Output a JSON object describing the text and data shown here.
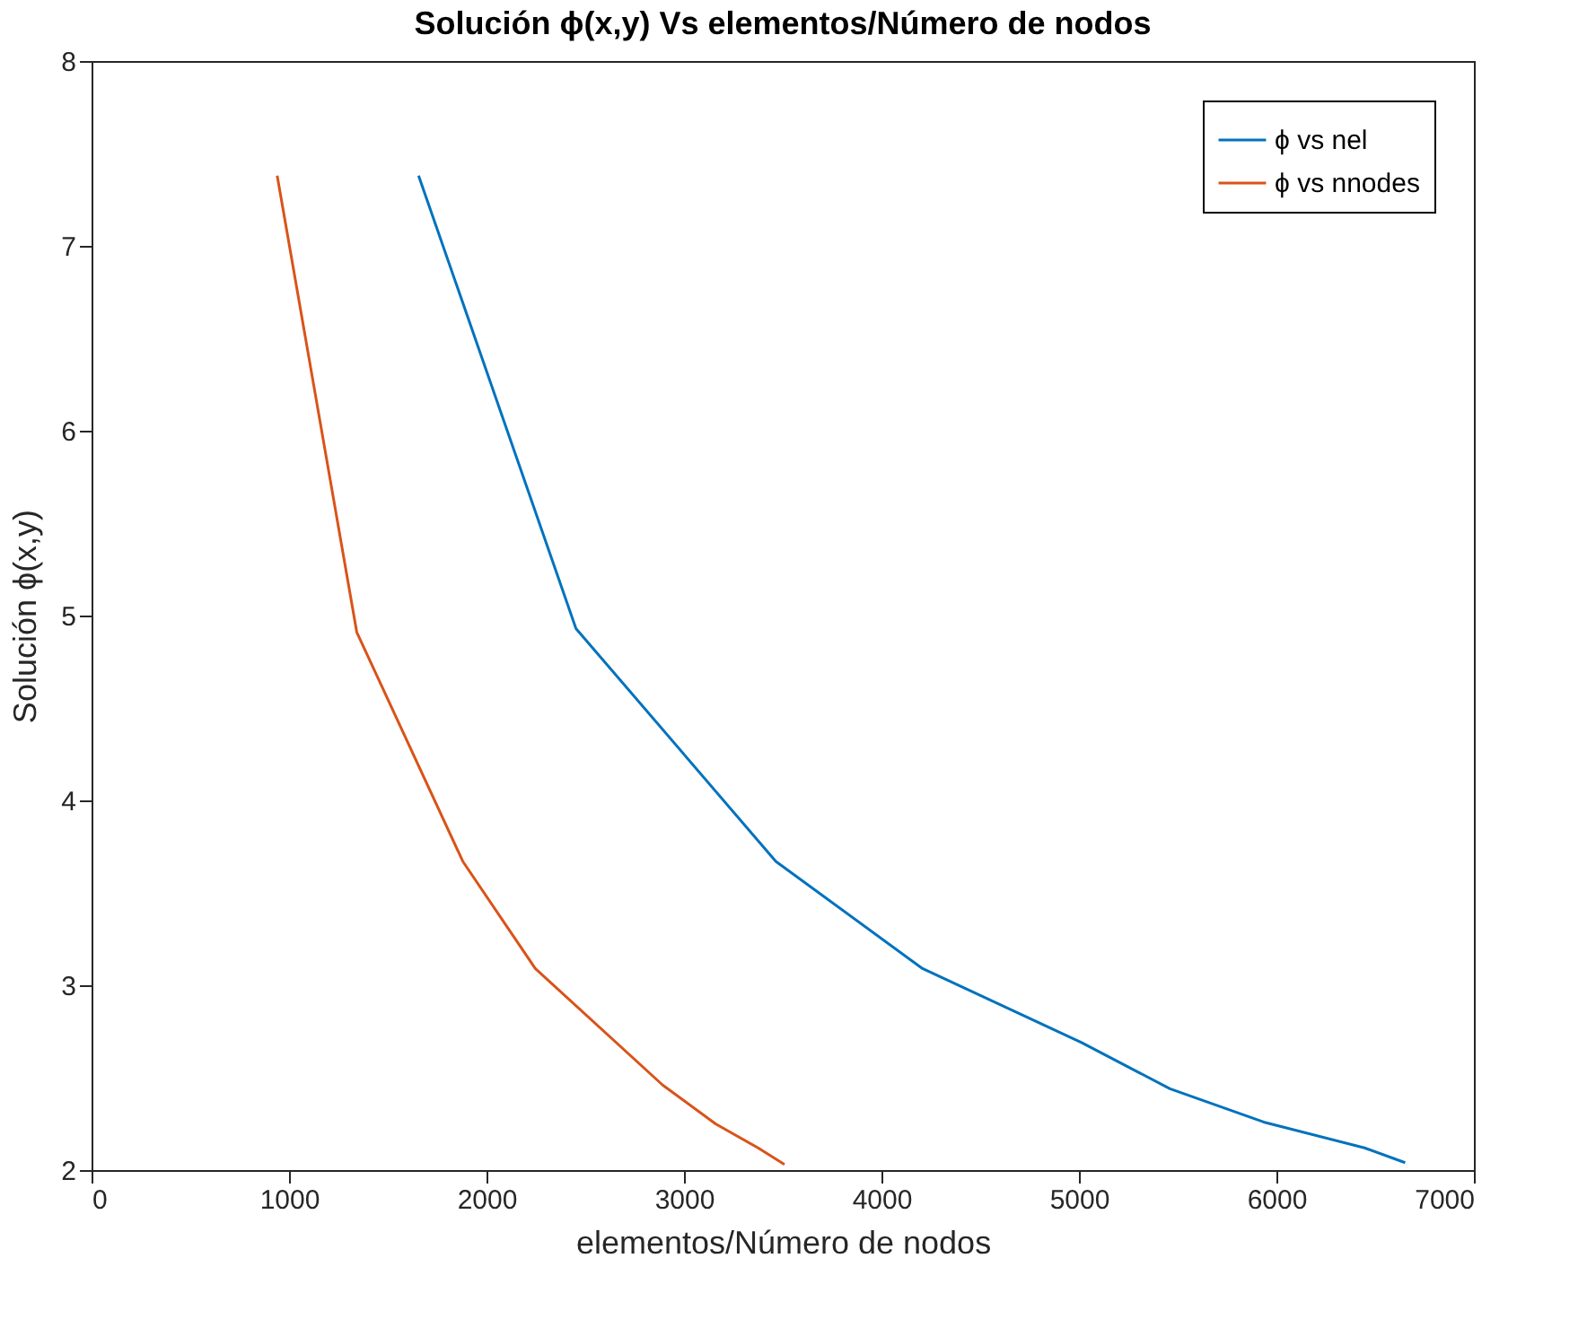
{
  "chart_data": {
    "type": "line",
    "title": "Solución ϕ(x,y) Vs elementos/Número de nodos",
    "xlabel": "elementos/Número de nodos",
    "ylabel": "Solución ϕ(x,y)",
    "xlim": [
      0,
      7000
    ],
    "ylim": [
      2,
      8
    ],
    "xticks": [
      0,
      1000,
      2000,
      3000,
      4000,
      5000,
      6000,
      7000
    ],
    "yticks": [
      2,
      3,
      4,
      5,
      6,
      7,
      8
    ],
    "grid": false,
    "legend": "top right",
    "marker": "none",
    "line_style": "solid",
    "series": [
      {
        "name": "ϕ vs nel",
        "color": "#0072bd",
        "x": [
          1656,
          2453,
          3465,
          4208,
          5013,
          5461,
          5935,
          6446,
          6652
        ],
        "values": [
          7.38,
          4.93,
          3.67,
          3.09,
          2.69,
          2.44,
          2.26,
          2.12,
          2.04
        ]
      },
      {
        "name": "ϕ vs nnodes",
        "color": "#d95319",
        "x": [
          940,
          1343,
          1880,
          2247,
          2892,
          3160,
          3375,
          3509
        ],
        "values": [
          7.38,
          4.91,
          3.67,
          3.09,
          2.46,
          2.25,
          2.12,
          2.03
        ]
      }
    ]
  }
}
